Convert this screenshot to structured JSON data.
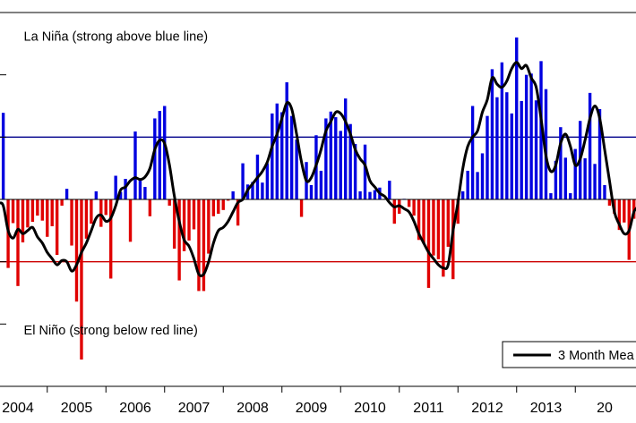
{
  "chart_data": {
    "type": "bar",
    "title": "",
    "xlabel": "",
    "ylabel": "",
    "ylim": [
      -3,
      3
    ],
    "y_axis_tick_labels": "not visible (cropped at left edge)",
    "grid": false,
    "x_ticks": [
      "2004",
      "2005",
      "2006",
      "2007",
      "2008",
      "2009",
      "2010",
      "2011",
      "2012",
      "2013",
      "20"
    ],
    "thresholds": [
      {
        "value": 1,
        "color": "#00008b"
      },
      {
        "value": -1,
        "color": "#cc0000"
      }
    ],
    "annotations": [
      {
        "text": "La Niña (strong above blue line)",
        "x": 2004.1,
        "y": 2.55
      },
      {
        "text": "El Niño (strong below red line)",
        "x": 2004.1,
        "y": -2.17
      }
    ],
    "legend": {
      "label": "3 Month Mea",
      "placement": "bottom-right"
    },
    "positive_color": "#0000e0",
    "negative_color": "#e00000",
    "line_color": "#000000",
    "x_start": 2003.5,
    "month_step": 0.08333,
    "series": [
      {
        "name": "monthly",
        "values": [
          0.79,
          0.11,
          0.14,
          1.39,
          -1.1,
          -0.38,
          -1.39,
          -0.69,
          -0.45,
          -0.36,
          -0.26,
          -0.34,
          -0.6,
          -0.43,
          -0.89,
          -0.1,
          0.17,
          -0.74,
          -1.64,
          -2.57,
          -0.63,
          -0.39,
          0.13,
          -0.44,
          -0.25,
          -1.27,
          0.38,
          0.12,
          0.33,
          -0.68,
          1.09,
          0.34,
          0.2,
          -0.27,
          1.3,
          1.42,
          1.5,
          -0.1,
          -0.79,
          -1.3,
          -0.83,
          -0.66,
          -0.48,
          -1.47,
          -1.47,
          -0.87,
          -0.27,
          -0.23,
          -0.17,
          -0.02,
          0.13,
          -0.42,
          0.58,
          0.24,
          0.28,
          0.72,
          0.27,
          0.58,
          1.38,
          1.54,
          1.4,
          1.88,
          1.34,
          0.96,
          -0.28,
          0.6,
          0.23,
          1.03,
          0.46,
          1.3,
          1.41,
          1.32,
          1.1,
          1.62,
          1.21,
          0.89,
          0.13,
          0.88,
          0.12,
          0.15,
          0.19,
          0.01,
          0.3,
          -0.39,
          -0.23,
          0.01,
          -0.12,
          -0.26,
          -0.65,
          -0.71,
          -1.42,
          -0.9,
          -0.96,
          -1.24,
          -0.76,
          -1.28,
          -0.39,
          0.13,
          0.46,
          1.5,
          0.44,
          0.74,
          1.34,
          2.09,
          1.64,
          2.2,
          1.72,
          1.38,
          2.6,
          1.58,
          2.0,
          2.02,
          1.59,
          2.22,
          1.77,
          0.1,
          0.62,
          1.16,
          0.67,
          0.1,
          0.81,
          1.26,
          0.66,
          1.71,
          0.57,
          1.45,
          0.23,
          -0.1,
          -0.23,
          -0.49,
          -0.37,
          -0.97,
          -0.31,
          -0.56,
          -0.06,
          0.15,
          0.2,
          0.2,
          0.15,
          0.27,
          -0.04,
          -0.68,
          -0.31,
          0.54,
          0.56,
          1.1,
          0.87,
          0.78,
          1.31,
          0.74,
          0.48,
          0.31,
          0.16,
          0.23,
          -0.18,
          0.35,
          0.81,
          0.71,
          1.2,
          0.36,
          -0.07,
          -1.2,
          0.89
        ]
      },
      {
        "name": "3 Month Mea",
        "values": [
          0.2,
          0.05,
          -0.05,
          -0.1,
          -0.5,
          -0.62,
          -0.48,
          -0.55,
          -0.5,
          -0.45,
          -0.6,
          -0.7,
          -0.85,
          -0.95,
          -1.05,
          -0.98,
          -1.0,
          -1.15,
          -1.05,
          -0.85,
          -0.7,
          -0.5,
          -0.3,
          -0.25,
          -0.35,
          -0.3,
          -0.1,
          0.15,
          0.2,
          0.3,
          0.35,
          0.32,
          0.36,
          0.5,
          0.8,
          0.95,
          0.9,
          0.55,
          0.05,
          -0.35,
          -0.65,
          -0.75,
          -0.95,
          -1.2,
          -1.2,
          -1.0,
          -0.7,
          -0.5,
          -0.45,
          -0.35,
          -0.2,
          -0.05,
          0.0,
          0.15,
          0.25,
          0.35,
          0.45,
          0.6,
          0.85,
          1.05,
          1.3,
          1.55,
          1.45,
          1.05,
          0.6,
          0.3,
          0.35,
          0.55,
          0.8,
          1.1,
          1.25,
          1.4,
          1.38,
          1.25,
          1.05,
          0.8,
          0.65,
          0.55,
          0.3,
          0.2,
          0.1,
          0.05,
          -0.05,
          -0.12,
          -0.1,
          -0.15,
          -0.2,
          -0.35,
          -0.55,
          -0.7,
          -0.85,
          -0.95,
          -1.05,
          -1.1,
          -1.05,
          -0.5,
          -0.05,
          0.5,
          0.85,
          1.0,
          1.1,
          1.4,
          1.6,
          1.95,
          1.85,
          1.8,
          1.9,
          2.1,
          2.2,
          2.1,
          2.15,
          1.95,
          1.8,
          1.3,
          0.7,
          0.45,
          0.55,
          0.9,
          1.05,
          0.85,
          0.55,
          0.65,
          0.95,
          1.3,
          1.5,
          1.3,
          0.8,
          0.3,
          -0.2,
          -0.4,
          -0.55,
          -0.5,
          -0.2,
          -0.1,
          0.05,
          0.12,
          0.18,
          0.2,
          0.22,
          0.1,
          -0.05,
          0.1,
          0.3,
          0.6,
          0.95,
          1.05,
          0.9,
          0.7,
          0.35,
          0.15,
          0.25,
          0.35,
          0.25,
          0.3,
          0.5,
          0.55,
          0.35,
          0.05,
          -0.05,
          0.45
        ]
      }
    ]
  }
}
